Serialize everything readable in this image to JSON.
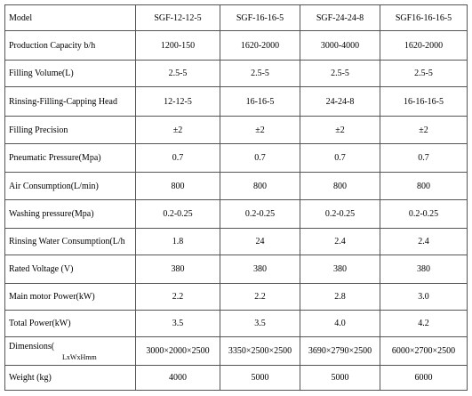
{
  "table": {
    "header": [
      "Model",
      "SGF-12-12-5",
      "SGF-16-16-5",
      "SGF-24-24-8",
      "SGF16-16-16-5"
    ],
    "rows": [
      {
        "label": "Production Capacity b/h",
        "values": [
          "1200-150",
          "1620-2000",
          "3000-4000",
          "1620-2000"
        ]
      },
      {
        "label": "Filling Volume(L)",
        "values": [
          "2.5-5",
          "2.5-5",
          "2.5-5",
          "2.5-5"
        ]
      },
      {
        "label": "Rinsing-Filling-Capping Head",
        "values": [
          "12-12-5",
          "16-16-5",
          "24-24-8",
          "16-16-16-5"
        ]
      },
      {
        "label": "Filling Precision",
        "values": [
          "±2",
          "±2",
          "±2",
          "±2"
        ]
      },
      {
        "label": "Pneumatic Pressure(Mpa)",
        "values": [
          "0.7",
          "0.7",
          "0.7",
          "0.7"
        ]
      },
      {
        "label": "Air Consumption(L/min)",
        "values": [
          "800",
          "800",
          "800",
          "800"
        ]
      },
      {
        "label": "Washing pressure(Mpa)",
        "values": [
          "0.2-0.25",
          "0.2-0.25",
          "0.2-0.25",
          "0.2-0.25"
        ]
      },
      {
        "label": "Rinsing Water Consumption(L/h",
        "values": [
          "1.8",
          "24",
          "2.4",
          "2.4"
        ]
      },
      {
        "label": "Rated Voltage (V)",
        "values": [
          "380",
          "380",
          "380",
          "380"
        ]
      },
      {
        "label": "Main motor Power(kW)",
        "values": [
          "2.2",
          "2.2",
          "2.8",
          "3.0"
        ]
      },
      {
        "label": "Total Power(kW)",
        "values": [
          "3.5",
          "3.5",
          "4.0",
          "4.2"
        ]
      },
      {
        "label": "Dimensions(",
        "note": "LxWxHmm",
        "values": [
          "3000×2000×2500",
          "3350×2500×2500",
          "3690×2790×2500",
          "6000×2700×2500"
        ]
      },
      {
        "label": "Weight (kg)",
        "values": [
          "4000",
          "5000",
          "5000",
          "6000"
        ]
      }
    ]
  }
}
